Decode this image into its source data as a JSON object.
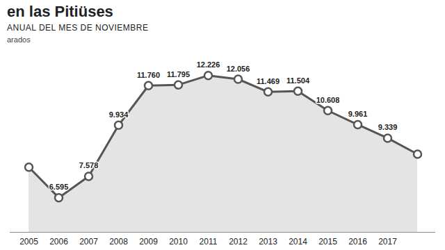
{
  "chart_data": {
    "type": "line",
    "title": "en las Pitiüses",
    "subtitle": "ANUAL DEL MES DE NOVIEMBRE",
    "y_label": "arados",
    "categories": [
      "2005",
      "2006",
      "2007",
      "2008",
      "2009",
      "2010",
      "2011",
      "2012",
      "2013",
      "2014",
      "2015",
      "2016",
      "2017",
      null
    ],
    "values": [
      8000,
      6595,
      7578,
      9934,
      11760,
      11795,
      12226,
      12056,
      11469,
      11504,
      10608,
      9961,
      9339,
      8600
    ],
    "value_labels": [
      null,
      "6.595",
      "7.578",
      "9.934",
      "11.760",
      "11.795",
      "12.226",
      "12.056",
      "11.469",
      "11.504",
      "10.608",
      "9.961",
      "9.339",
      null
    ],
    "data_labels": true,
    "color": "#555555",
    "marker": "circle",
    "ylim": [
      5000,
      13000
    ],
    "grid": false,
    "tick_labels": "x"
  }
}
